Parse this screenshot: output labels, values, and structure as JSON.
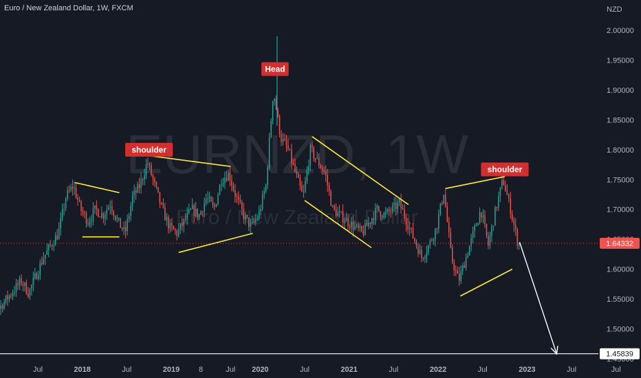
{
  "header": {
    "title": "Euro / New Zealand Dollar, 1W, FXCM"
  },
  "watermark": {
    "symbol": "EURNZD, 1W",
    "name": "Euro / New Zealand Dollar"
  },
  "colors": {
    "background": "#161a25",
    "up": "#26a69a",
    "down": "#ef5350",
    "trendline": "#ffeb3b",
    "label_bg": "#d32f2f",
    "current_price": "#ef5350",
    "target_line": "#ffffff"
  },
  "chart_data": {
    "type": "candlestick",
    "title": "Euro / New Zealand Dollar, 1W, FXCM",
    "y_axis_label": "NZD",
    "ylim": [
      1.42,
      2.02
    ],
    "y_ticks": [
      "2.00000",
      "1.95000",
      "1.90000",
      "1.85000",
      "1.80000",
      "1.75000",
      "1.70000",
      "1.65000",
      "1.60000",
      "1.55000",
      "1.50000",
      "1.45000"
    ],
    "y_tick_values": [
      2.0,
      1.95,
      1.9,
      1.85,
      1.8,
      1.75,
      1.7,
      1.65,
      1.6,
      1.55,
      1.5,
      1.45
    ],
    "x_ticks": [
      {
        "label": "Jul",
        "date": "2017-07"
      },
      {
        "label": "2018",
        "date": "2018-01"
      },
      {
        "label": "Jul",
        "date": "2018-07"
      },
      {
        "label": "2019",
        "date": "2019-01"
      },
      {
        "label": "8",
        "date": "2019-05"
      },
      {
        "label": "Jul",
        "date": "2019-09"
      },
      {
        "label": "2020",
        "date": "2020-01"
      },
      {
        "label": "Jul",
        "date": "2020-07"
      },
      {
        "label": "2021",
        "date": "2021-01"
      },
      {
        "label": "Jul",
        "date": "2021-07"
      },
      {
        "label": "2022",
        "date": "2022-01"
      },
      {
        "label": "Jul",
        "date": "2022-07"
      },
      {
        "label": "2023",
        "date": "2023-01"
      },
      {
        "label": "Jul",
        "date": "2023-07"
      },
      {
        "label": "Jul",
        "date": "2024-01"
      }
    ],
    "price_path": [
      [
        "2016-11",
        1.47
      ],
      [
        "2017-01",
        1.52
      ],
      [
        "2017-03",
        1.55
      ],
      [
        "2017-05",
        1.58
      ],
      [
        "2017-06",
        1.56
      ],
      [
        "2017-08",
        1.62
      ],
      [
        "2017-10",
        1.66
      ],
      [
        "2017-11",
        1.72
      ],
      [
        "2017-12",
        1.74
      ],
      [
        "2018-01",
        1.7
      ],
      [
        "2018-02",
        1.68
      ],
      [
        "2018-03",
        1.7
      ],
      [
        "2018-04",
        1.69
      ],
      [
        "2018-05",
        1.71
      ],
      [
        "2018-06",
        1.68
      ],
      [
        "2018-07",
        1.66
      ],
      [
        "2018-08",
        1.72
      ],
      [
        "2018-09",
        1.74
      ],
      [
        "2018-10",
        1.78
      ],
      [
        "2018-11",
        1.74
      ],
      [
        "2018-12",
        1.7
      ],
      [
        "2019-01",
        1.67
      ],
      [
        "2019-02",
        1.66
      ],
      [
        "2019-03",
        1.68
      ],
      [
        "2019-04",
        1.7
      ],
      [
        "2019-05",
        1.69
      ],
      [
        "2019-06",
        1.72
      ],
      [
        "2019-07",
        1.7
      ],
      [
        "2019-08",
        1.75
      ],
      [
        "2019-09",
        1.76
      ],
      [
        "2019-10",
        1.72
      ],
      [
        "2019-11",
        1.69
      ],
      [
        "2019-12",
        1.67
      ],
      [
        "2020-01",
        1.69
      ],
      [
        "2020-02",
        1.74
      ],
      [
        "2020-03",
        1.9
      ],
      [
        "2020-04",
        1.82
      ],
      [
        "2020-05",
        1.8
      ],
      [
        "2020-06",
        1.76
      ],
      [
        "2020-07",
        1.72
      ],
      [
        "2020-08",
        1.8
      ],
      [
        "2020-09",
        1.78
      ],
      [
        "2020-10",
        1.76
      ],
      [
        "2020-11",
        1.7
      ],
      [
        "2020-12",
        1.69
      ],
      [
        "2021-01",
        1.68
      ],
      [
        "2021-02",
        1.67
      ],
      [
        "2021-03",
        1.66
      ],
      [
        "2021-04",
        1.68
      ],
      [
        "2021-05",
        1.7
      ],
      [
        "2021-06",
        1.69
      ],
      [
        "2021-07",
        1.7
      ],
      [
        "2021-08",
        1.71
      ],
      [
        "2021-09",
        1.68
      ],
      [
        "2021-10",
        1.65
      ],
      [
        "2021-11",
        1.62
      ],
      [
        "2021-12",
        1.64
      ],
      [
        "2022-01",
        1.67
      ],
      [
        "2022-02",
        1.73
      ],
      [
        "2022-03",
        1.62
      ],
      [
        "2022-04",
        1.58
      ],
      [
        "2022-05",
        1.62
      ],
      [
        "2022-06",
        1.66
      ],
      [
        "2022-07",
        1.7
      ],
      [
        "2022-08",
        1.64
      ],
      [
        "2022-09",
        1.7
      ],
      [
        "2022-10",
        1.75
      ],
      [
        "2022-11",
        1.7
      ],
      [
        "2022-12",
        1.643
      ]
    ],
    "wick_extremes": [
      {
        "date": "2020-03",
        "high": 1.99,
        "low": 1.84
      }
    ],
    "annotations": [
      {
        "id": "shoulder-left",
        "text": "shoulder",
        "date": "2018-10",
        "price": 1.8
      },
      {
        "id": "head",
        "text": "Head",
        "date": "2020-03",
        "price": 1.935
      },
      {
        "id": "shoulder-right",
        "text": "shoulder",
        "date": "2022-10",
        "price": 1.767
      }
    ],
    "trendlines": [
      {
        "id": "t1",
        "from": [
          "2017-12",
          1.745
        ],
        "to": [
          "2018-06",
          1.728
        ]
      },
      {
        "id": "t2",
        "from": [
          "2018-01",
          1.654
        ],
        "to": [
          "2018-06",
          1.654
        ]
      },
      {
        "id": "t3",
        "from": [
          "2018-10",
          1.79
        ],
        "to": [
          "2019-09",
          1.772
        ]
      },
      {
        "id": "t4",
        "from": [
          "2019-02",
          1.628
        ],
        "to": [
          "2019-12",
          1.66
        ]
      },
      {
        "id": "t5",
        "from": [
          "2020-08",
          1.822
        ],
        "to": [
          "2021-09",
          1.708
        ]
      },
      {
        "id": "t6",
        "from": [
          "2020-07",
          1.715
        ],
        "to": [
          "2021-04",
          1.636
        ]
      },
      {
        "id": "t7",
        "from": [
          "2022-02",
          1.735
        ],
        "to": [
          "2022-10",
          1.755
        ]
      },
      {
        "id": "t8",
        "from": [
          "2022-04",
          1.555
        ],
        "to": [
          "2022-11",
          1.6
        ]
      }
    ],
    "projection_arrow": {
      "from": [
        "2022-12",
        1.645
      ],
      "to": [
        "2023-05",
        1.458
      ]
    },
    "horizontal_line": {
      "price": 1.45839
    },
    "price_tags": [
      {
        "id": "current",
        "label": "1.64332",
        "price": 1.64332
      },
      {
        "id": "target",
        "label": "1.45839",
        "price": 1.45839
      }
    ]
  }
}
